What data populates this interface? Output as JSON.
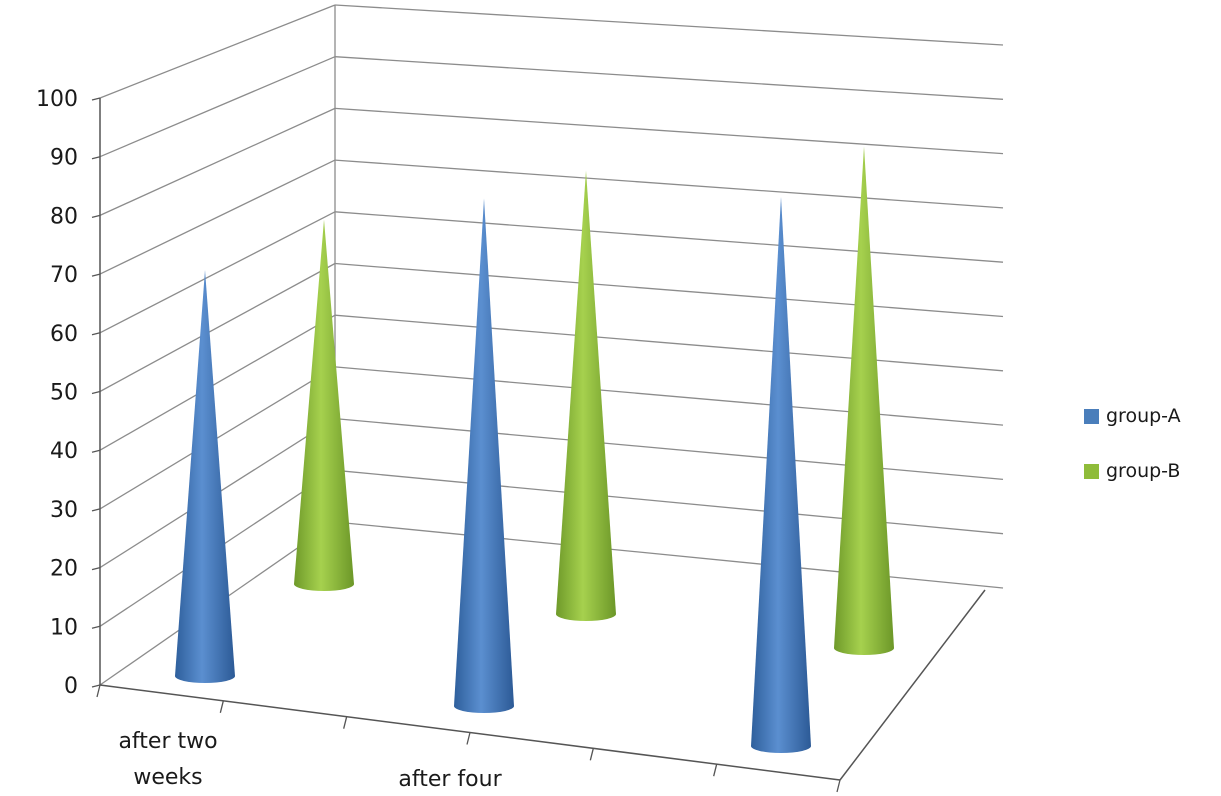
{
  "chart_data": {
    "type": "bar",
    "style": "3d-cone",
    "title": "",
    "xlabel": "",
    "ylabel": "",
    "ylim": [
      0,
      100
    ],
    "y_ticks": [
      "0",
      "10",
      "20",
      "30",
      "40",
      "50",
      "60",
      "70",
      "80",
      "90",
      "100"
    ],
    "grid": true,
    "legend_position": "right",
    "categories": [
      [
        "after two",
        "weeks"
      ],
      [
        "after four"
      ],
      [
        ""
      ]
    ],
    "series": [
      {
        "name": "group-A",
        "color": "#4a7ebb",
        "values": [
          68,
          85,
          92
        ]
      },
      {
        "name": "group-B",
        "color": "#8fbc3a",
        "values": [
          69,
          84,
          95
        ]
      }
    ]
  }
}
